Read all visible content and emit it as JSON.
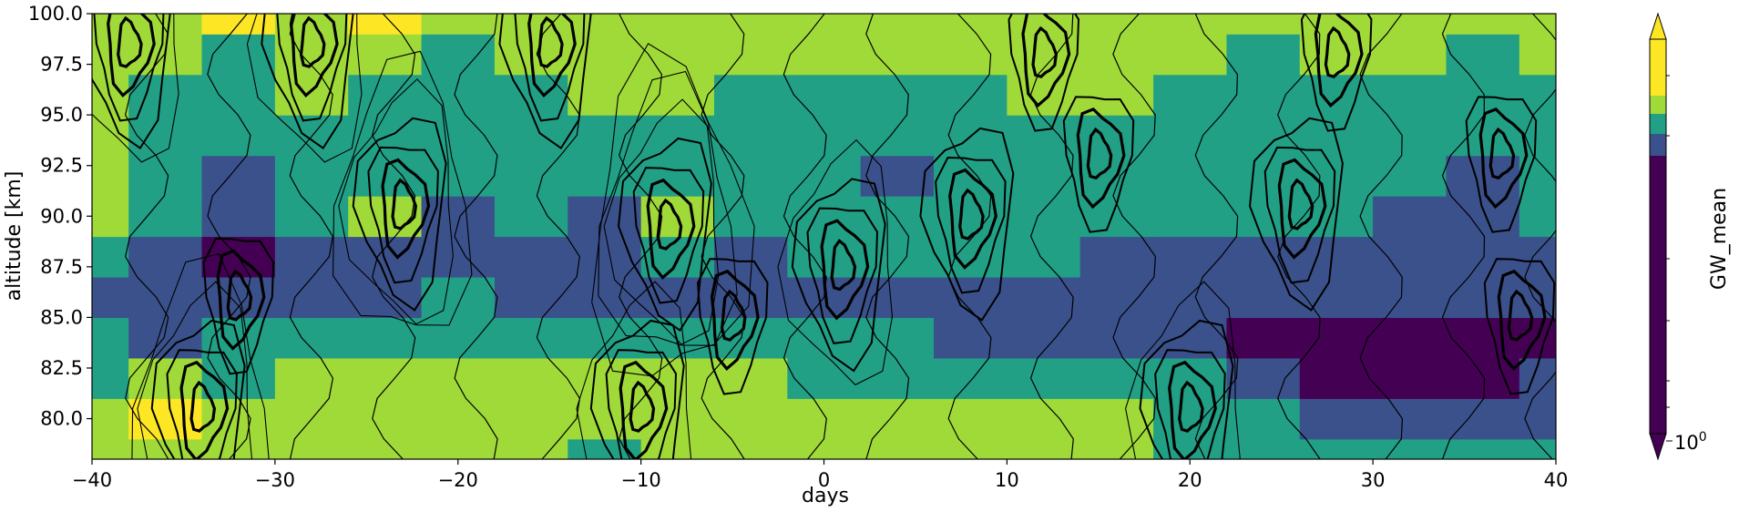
{
  "chart_data": {
    "type": "heatmap",
    "xlabel": "days",
    "ylabel": "altitude [km]",
    "colorbar_label": "GW_mean",
    "colorbar_tick_label": "10",
    "colorbar_tick_exponent": "0",
    "xlim": [
      -40,
      40
    ],
    "ylim": [
      78,
      100
    ],
    "x_ticks": [
      -40,
      -30,
      -20,
      -10,
      0,
      10,
      20,
      30,
      40
    ],
    "x_tick_labels": [
      "−40",
      "−30",
      "−20",
      "−10",
      "0",
      "10",
      "20",
      "30",
      "40"
    ],
    "y_ticks": [
      80,
      82.5,
      85,
      87.5,
      90,
      92.5,
      95,
      97.5,
      100
    ],
    "y_tick_labels": [
      "80.0",
      "82.5",
      "85.0",
      "87.5",
      "90.0",
      "92.5",
      "95.0",
      "97.5",
      "100.0"
    ],
    "colormap": [
      "#440154",
      "#3b518b",
      "#21a086",
      "#a0da39",
      "#fde725"
    ],
    "days": [
      -40,
      -36,
      -32,
      -28,
      -24,
      -20,
      -16,
      -12,
      -8,
      -4,
      0,
      4,
      8,
      12,
      16,
      20,
      24,
      28,
      32,
      36,
      40
    ],
    "altitudes": [
      78,
      80,
      82,
      84,
      86,
      88,
      90,
      92,
      94,
      96,
      98,
      100
    ],
    "fill_levels": [
      [
        3,
        3,
        3,
        3,
        3,
        3,
        3,
        2,
        3,
        3,
        3,
        3,
        3,
        3,
        3,
        2,
        2,
        2,
        2,
        2,
        2
      ],
      [
        3,
        4,
        3,
        3,
        3,
        3,
        3,
        3,
        3,
        3,
        3,
        3,
        3,
        3,
        3,
        2,
        2,
        1,
        1,
        1,
        1
      ],
      [
        2,
        3,
        2,
        3,
        3,
        3,
        3,
        3,
        3,
        3,
        2,
        2,
        2,
        2,
        2,
        2,
        1,
        0,
        0,
        0,
        1
      ],
      [
        2,
        1,
        2,
        2,
        2,
        2,
        2,
        2,
        2,
        2,
        2,
        2,
        1,
        1,
        1,
        1,
        0,
        0,
        0,
        0,
        0
      ],
      [
        1,
        1,
        1,
        1,
        1,
        2,
        1,
        1,
        1,
        1,
        1,
        1,
        1,
        1,
        1,
        1,
        1,
        1,
        1,
        1,
        1
      ],
      [
        2,
        1,
        0,
        1,
        1,
        1,
        1,
        1,
        2,
        1,
        2,
        2,
        2,
        2,
        1,
        1,
        1,
        1,
        1,
        1,
        1
      ],
      [
        3,
        2,
        1,
        2,
        3,
        1,
        2,
        1,
        3,
        2,
        2,
        2,
        2,
        2,
        2,
        2,
        2,
        2,
        1,
        1,
        2
      ],
      [
        3,
        2,
        1,
        2,
        2,
        2,
        2,
        2,
        2,
        2,
        2,
        1,
        2,
        2,
        2,
        2,
        2,
        2,
        2,
        1,
        2
      ],
      [
        3,
        2,
        2,
        2,
        2,
        2,
        2,
        2,
        2,
        2,
        2,
        2,
        2,
        2,
        2,
        2,
        2,
        2,
        2,
        2,
        2
      ],
      [
        3,
        2,
        2,
        3,
        2,
        2,
        2,
        3,
        3,
        2,
        2,
        2,
        2,
        3,
        3,
        2,
        2,
        2,
        2,
        2,
        2
      ],
      [
        3,
        3,
        2,
        3,
        3,
        2,
        3,
        3,
        3,
        3,
        3,
        3,
        3,
        3,
        3,
        3,
        2,
        3,
        3,
        2,
        3
      ],
      [
        3,
        3,
        4,
        3,
        4,
        3,
        3,
        3,
        3,
        3,
        3,
        3,
        3,
        3,
        3,
        3,
        3,
        3,
        3,
        3,
        3
      ]
    ],
    "contour_centers": [
      {
        "x": -38,
        "y": 98.5,
        "n": 5
      },
      {
        "x": -34,
        "y": 80.5,
        "n": 6
      },
      {
        "x": -28,
        "y": 98.5,
        "n": 5
      },
      {
        "x": -23,
        "y": 90.5,
        "n": 6
      },
      {
        "x": -10,
        "y": 80.5,
        "n": 5
      },
      {
        "x": -8.5,
        "y": 89.5,
        "n": 7
      },
      {
        "x": -15,
        "y": 98.5,
        "n": 4
      },
      {
        "x": 1,
        "y": 87.5,
        "n": 5
      },
      {
        "x": 8,
        "y": 90,
        "n": 4
      },
      {
        "x": 15,
        "y": 93,
        "n": 3
      },
      {
        "x": 20,
        "y": 80.5,
        "n": 5
      },
      {
        "x": 26,
        "y": 90.5,
        "n": 4
      },
      {
        "x": 37,
        "y": 93,
        "n": 3
      },
      {
        "x": -5,
        "y": 85,
        "n": 3
      },
      {
        "x": 38,
        "y": 85,
        "n": 3
      },
      {
        "x": 12,
        "y": 98,
        "n": 3
      },
      {
        "x": 28,
        "y": 98,
        "n": 3
      },
      {
        "x": -32,
        "y": 86,
        "n": 3
      }
    ]
  }
}
